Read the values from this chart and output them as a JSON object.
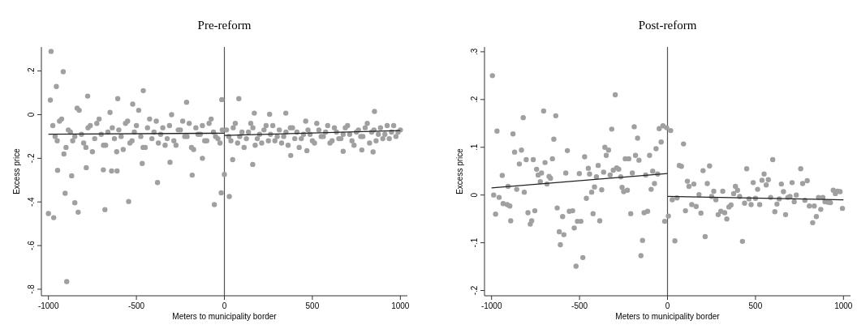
{
  "chart_data": [
    {
      "type": "scatter",
      "title": "Pre-reform",
      "xlabel": "Meters to municipality border",
      "ylabel": "Excess price",
      "xlim": [
        -1040,
        1040
      ],
      "ylim": [
        -0.83,
        0.31
      ],
      "xticks": [
        -1000,
        -500,
        0,
        500,
        1000
      ],
      "yticks": [
        {
          "value": 0.2,
          "label": ".2"
        },
        0,
        {
          "value": -0.2,
          "label": "-.2"
        },
        {
          "value": -0.4,
          "label": "-.4"
        },
        {
          "value": -0.6,
          "label": "-.6"
        },
        {
          "value": -0.8,
          "label": "-.8"
        }
      ],
      "grid": false,
      "legend": false,
      "marker": "circle",
      "ref_lines": [
        {
          "axis": "x",
          "value": 0,
          "color": "#555555"
        }
      ],
      "series": [
        {
          "type": "scatter",
          "color": "#a0a0a0",
          "x": [
            -985,
            -916,
            -955,
            -461,
            -1000,
            -970,
            -896,
            -905,
            -868,
            -850,
            -831,
            -679,
            -544,
            -380,
            -183,
            -57,
            -18,
            0,
            28,
            161,
            -641,
            -610,
            -688,
            -948,
            -785,
            82,
            170,
            257,
            349,
            853,
            845,
            781,
            675,
            377,
            469,
            -309,
            -467,
            -125,
            47,
            -989,
            -606,
            -777,
            -521,
            -215,
            -15,
            -975,
            -950,
            -925,
            -900,
            -875,
            -850,
            -825,
            -800,
            -775,
            -750,
            -725,
            -700,
            -675,
            -650,
            -625,
            -600,
            -575,
            -550,
            -525,
            -500,
            -475,
            -450,
            -425,
            -400,
            -375,
            -350,
            -325,
            -300,
            -275,
            -250,
            -225,
            -200,
            -175,
            -150,
            -125,
            -100,
            -75,
            -50,
            -25,
            -962,
            -937,
            -912,
            -887,
            -862,
            -837,
            -812,
            -787,
            -762,
            -737,
            -712,
            -687,
            -662,
            -637,
            -612,
            -587,
            -562,
            -537,
            -512,
            -487,
            -462,
            -437,
            -412,
            -387,
            -362,
            -337,
            -312,
            -287,
            -262,
            -237,
            -212,
            -187,
            -162,
            -137,
            -112,
            -87,
            -62,
            -37,
            -12,
            25,
            50,
            75,
            100,
            125,
            150,
            175,
            200,
            225,
            250,
            275,
            300,
            325,
            350,
            375,
            400,
            425,
            450,
            475,
            500,
            525,
            550,
            575,
            600,
            625,
            650,
            675,
            700,
            725,
            750,
            775,
            800,
            825,
            850,
            875,
            900,
            925,
            950,
            975,
            1000,
            12,
            37,
            62,
            87,
            112,
            137,
            162,
            187,
            212,
            237,
            262,
            287,
            312,
            337,
            362,
            387,
            412,
            437,
            462,
            487,
            512,
            537,
            562,
            587,
            612,
            637,
            662,
            687,
            712,
            737,
            762,
            787,
            812,
            837,
            862,
            887,
            912,
            937,
            962,
            987
          ],
          "values": [
            0.29,
            0.197,
            0.129,
            0.11,
            -0.453,
            -0.472,
            -0.765,
            -0.36,
            -0.28,
            -0.404,
            -0.447,
            -0.435,
            -0.398,
            -0.311,
            -0.277,
            -0.412,
            -0.358,
            -0.274,
            -0.375,
            -0.228,
            -0.258,
            -0.258,
            -0.253,
            -0.255,
            -0.243,
            0.073,
            0.007,
            0.002,
            0.007,
            0.015,
            -0.171,
            -0.162,
            -0.168,
            -0.187,
            -0.165,
            -0.218,
            -0.224,
            -0.2,
            -0.206,
            0.067,
            0.073,
            0.085,
            0.048,
            0.057,
            0.069,
            -0.05,
            -0.12,
            -0.02,
            -0.15,
            -0.08,
            -0.1,
            0.02,
            -0.13,
            -0.06,
            -0.17,
            -0.04,
            -0.09,
            -0.14,
            0.01,
            -0.11,
            -0.07,
            -0.16,
            -0.03,
            -0.12,
            -0.05,
            -0.1,
            -0.15,
            -0.02,
            -0.08,
            -0.13,
            -0.06,
            -0.11,
            0.0,
            -0.14,
            -0.07,
            -0.1,
            -0.04,
            -0.16,
            -0.09,
            -0.05,
            -0.12,
            -0.02,
            -0.1,
            -0.13,
            -0.1,
            -0.03,
            -0.18,
            -0.07,
            -0.12,
            0.03,
            -0.09,
            -0.15,
            -0.05,
            -0.11,
            -0.02,
            -0.14,
            -0.08,
            -0.06,
            -0.17,
            -0.1,
            -0.04,
            -0.13,
            -0.08,
            0.02,
            -0.15,
            -0.06,
            -0.11,
            -0.03,
            -0.09,
            -0.14,
            -0.05,
            -0.12,
            -0.07,
            -0.03,
            -0.1,
            -0.15,
            -0.06,
            -0.09,
            -0.12,
            -0.04,
            -0.08,
            -0.11,
            -0.07,
            -0.1,
            -0.06,
            -0.13,
            -0.08,
            -0.11,
            -0.04,
            -0.14,
            -0.09,
            -0.07,
            -0.12,
            -0.05,
            -0.1,
            -0.13,
            -0.08,
            -0.06,
            -0.11,
            -0.15,
            -0.09,
            -0.07,
            -0.12,
            -0.04,
            -0.1,
            -0.08,
            -0.13,
            -0.06,
            -0.11,
            -0.09,
            -0.05,
            -0.12,
            -0.08,
            -0.1,
            -0.06,
            -0.13,
            -0.07,
            -0.09,
            -0.11,
            -0.05,
            -0.08,
            -0.1,
            -0.07,
            -0.07,
            -0.12,
            -0.04,
            -0.1,
            -0.15,
            -0.08,
            -0.06,
            -0.11,
            -0.13,
            -0.05,
            -0.09,
            -0.12,
            -0.07,
            -0.1,
            -0.14,
            -0.06,
            -0.08,
            -0.11,
            -0.03,
            -0.09,
            -0.13,
            -0.07,
            -0.1,
            -0.05,
            -0.12,
            -0.08,
            -0.11,
            -0.06,
            -0.09,
            -0.14,
            -0.07,
            -0.1,
            -0.04,
            -0.08,
            -0.12,
            -0.06,
            -0.09,
            -0.11,
            -0.05,
            -0.08
          ]
        },
        {
          "type": "line",
          "marker": "none",
          "color": "#222222",
          "x": [
            -1000,
            0
          ],
          "values": [
            -0.09,
            -0.085
          ]
        },
        {
          "type": "line",
          "marker": "none",
          "color": "#222222",
          "x": [
            0,
            1000
          ],
          "values": [
            -0.095,
            -0.073
          ]
        }
      ]
    },
    {
      "type": "scatter",
      "title": "Post-reform",
      "xlabel": "Meters to municipality border",
      "ylabel": "Excess price",
      "xlim": [
        -1040,
        1040
      ],
      "ylim": [
        -0.211,
        0.31
      ],
      "xticks": [
        -1000,
        -500,
        0,
        500,
        1000
      ],
      "yticks": [
        {
          "value": 0.3,
          "label": ".3"
        },
        {
          "value": 0.2,
          "label": ".2"
        },
        {
          "value": 0.1,
          "label": ".1"
        },
        0,
        {
          "value": -0.1,
          "label": "-.1"
        },
        {
          "value": -0.2,
          "label": "-.2"
        }
      ],
      "grid": false,
      "legend": false,
      "marker": "circle",
      "ref_lines": [
        {
          "axis": "x",
          "value": 0,
          "color": "#555555"
        }
      ],
      "series": [
        {
          "type": "scatter",
          "color": "#a0a0a0",
          "x": [
            -995,
            -988,
            -977,
            -969,
            -957,
            -939,
            -934,
            -911,
            -896,
            -906,
            -891,
            -878,
            -869,
            -857,
            -842,
            -830,
            -820,
            -814,
            -803,
            -793,
            -780,
            -772,
            -763,
            -754,
            -744,
            -735,
            -723,
            -716,
            -704,
            -696,
            -685,
            -673,
            -665,
            -654,
            -646,
            -635,
            -627,
            -615,
            -609,
            -596,
            -589,
            -578,
            -569,
            -558,
            -539,
            -530,
            -520,
            -512,
            -501,
            -492,
            -481,
            -471,
            -461,
            -450,
            -443,
            -431,
            -423,
            -415,
            -404,
            -394,
            -385,
            -374,
            -363,
            -356,
            -348,
            -335,
            -326,
            -317,
            -308,
            -297,
            -289,
            -277,
            -266,
            -258,
            -249,
            -240,
            -228,
            -220,
            -209,
            -200,
            -189,
            -182,
            -170,
            -162,
            -151,
            -142,
            -133,
            -124,
            -113,
            -102,
            -93,
            -84,
            -74,
            -65,
            -56,
            -47,
            -36,
            -26,
            -16,
            -5,
            5,
            18,
            27,
            42,
            54,
            67,
            79,
            91,
            102,
            113,
            122,
            138,
            150,
            163,
            179,
            190,
            202,
            214,
            226,
            239,
            251,
            263,
            275,
            288,
            303,
            314,
            325,
            337,
            349,
            361,
            376,
            386,
            398,
            410,
            426,
            438,
            450,
            463,
            475,
            487,
            500,
            512,
            524,
            537,
            549,
            561,
            573,
            586,
            598,
            610,
            622,
            635,
            647,
            659,
            671,
            684,
            696,
            708,
            720,
            732,
            757,
            768,
            781,
            794,
            806,
            825,
            834,
            846,
            858,
            871,
            883,
            895,
            911,
            926,
            942,
            954,
            966,
            981,
            994
          ],
          "values": [
            0.25,
            0.0,
            -0.04,
            0.134,
            -0.005,
            0.041,
            -0.018,
            -0.02,
            -0.023,
            0.018,
            -0.054,
            0.128,
            0.09,
            0.012,
            0.065,
            0.094,
            0.162,
            0.006,
            0.074,
            -0.037,
            -0.061,
            -0.054,
            0.074,
            -0.033,
            0.054,
            0.042,
            0.028,
            0.046,
            0.176,
            0.068,
            0.023,
            0.039,
            0.035,
            0.076,
            0.117,
            0.166,
            -0.027,
            -0.077,
            -0.104,
            -0.045,
            -0.083,
            0.046,
            0.093,
            -0.034,
            -0.033,
            -0.069,
            -0.149,
            -0.055,
            0.045,
            -0.055,
            -0.131,
            0.08,
            -0.007,
            0.056,
            0.044,
            0.006,
            -0.039,
            0.017,
            0.038,
            0.062,
            -0.054,
            0.011,
            0.048,
            0.1,
            0.083,
            0.094,
            0.042,
            0.138,
            0.052,
            0.21,
            0.057,
            0.054,
            0.038,
            0.016,
            0.007,
            0.076,
            0.01,
            0.076,
            -0.039,
            0.046,
            0.143,
            0.083,
            0.119,
            0.073,
            -0.127,
            -0.095,
            -0.037,
            0.042,
            -0.034,
            0.083,
            0.012,
            0.05,
            0.024,
            0.097,
            0.044,
            0.139,
            0.111,
            0.145,
            -0.055,
            0.141,
            -0.044,
            0.135,
            -0.01,
            -0.096,
            -0.006,
            0.062,
            0.06,
            0.107,
            -0.033,
            0.029,
            0.018,
            -0.02,
            0.023,
            -0.024,
            0.001,
            -0.038,
            0.051,
            -0.087,
            0.024,
            0.061,
            -0.003,
            0.008,
            -0.01,
            -0.041,
            -0.034,
            0.008,
            -0.037,
            -0.05,
            -0.025,
            -0.021,
            0.003,
            0.018,
            0.01,
            -0.003,
            -0.097,
            -0.017,
            0.055,
            -0.008,
            -0.02,
            0.026,
            -0.007,
            0.012,
            -0.02,
            0.031,
            0.044,
            0.021,
            0.032,
            -0.005,
            0.074,
            -0.035,
            -0.019,
            -0.008,
            0.023,
            0.007,
            -0.041,
            -0.005,
            -0.003,
            0.026,
            -0.014,
            0.0,
            0.055,
            0.024,
            -0.011,
            0.03,
            -0.023,
            -0.058,
            -0.023,
            -0.045,
            -0.005,
            -0.03,
            -0.005,
            -0.014,
            -0.015,
            -0.016,
            0.01,
            0.003,
            0.008,
            0.007,
            -0.028
          ]
        },
        {
          "type": "line",
          "marker": "none",
          "color": "#222222",
          "x": [
            -1000,
            0
          ],
          "values": [
            0.015,
            0.045
          ]
        },
        {
          "type": "line",
          "marker": "none",
          "color": "#222222",
          "x": [
            0,
            1000
          ],
          "values": [
            -0.003,
            -0.01
          ]
        }
      ]
    }
  ]
}
